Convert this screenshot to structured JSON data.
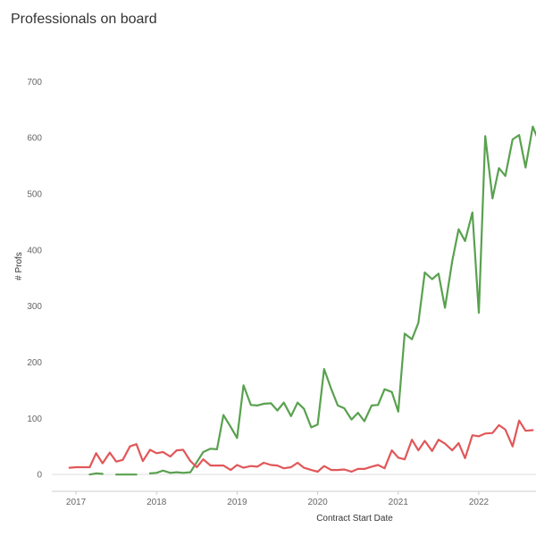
{
  "chart_data": {
    "type": "line",
    "title": "Professionals on board",
    "xlabel": "Contract Start Date",
    "ylabel": "# Profs",
    "ylim": [
      -30,
      750
    ],
    "xlim": [
      2016.7,
      2022.71
    ],
    "y_ticks": [
      0,
      100,
      200,
      300,
      400,
      500,
      600,
      700
    ],
    "x_ticks": [
      "2017",
      "2018",
      "2019",
      "2020",
      "2021",
      "2022"
    ],
    "grid": "horizontal zero line only",
    "legend": "none",
    "colors": {
      "green": "#59a14f",
      "red": "#e15759"
    },
    "series": [
      {
        "color": "#59a14f",
        "segments": [
          [
            [
              2017.17,
              0
            ],
            [
              2017.25,
              2
            ],
            [
              2017.33,
              1
            ]
          ],
          [
            [
              2017.5,
              0
            ],
            [
              2017.58,
              0
            ],
            [
              2017.67,
              0
            ],
            [
              2017.75,
              0
            ]
          ],
          [
            [
              2017.92,
              2
            ],
            [
              2018.0,
              3
            ],
            [
              2018.08,
              7
            ],
            [
              2018.17,
              3
            ],
            [
              2018.25,
              4
            ],
            [
              2018.33,
              3
            ],
            [
              2018.42,
              4
            ],
            [
              2018.5,
              22
            ],
            [
              2018.58,
              40
            ],
            [
              2018.67,
              46
            ],
            [
              2018.75,
              45
            ],
            [
              2018.83,
              106
            ],
            [
              2018.92,
              85
            ],
            [
              2019.0,
              65
            ],
            [
              2019.08,
              159
            ],
            [
              2019.17,
              124
            ],
            [
              2019.25,
              123
            ],
            [
              2019.33,
              126
            ],
            [
              2019.42,
              127
            ],
            [
              2019.5,
              114
            ],
            [
              2019.58,
              128
            ],
            [
              2019.67,
              104
            ],
            [
              2019.75,
              128
            ],
            [
              2019.83,
              117
            ],
            [
              2019.92,
              84
            ],
            [
              2020.0,
              89
            ],
            [
              2020.08,
              188
            ],
            [
              2020.17,
              152
            ],
            [
              2020.25,
              123
            ],
            [
              2020.33,
              118
            ],
            [
              2020.42,
              98
            ],
            [
              2020.5,
              110
            ],
            [
              2020.58,
              95
            ],
            [
              2020.67,
              123
            ],
            [
              2020.75,
              124
            ],
            [
              2020.83,
              152
            ],
            [
              2020.92,
              147
            ],
            [
              2021.0,
              112
            ],
            [
              2021.08,
              251
            ],
            [
              2021.17,
              241
            ],
            [
              2021.25,
              270
            ],
            [
              2021.33,
              360
            ],
            [
              2021.42,
              348
            ],
            [
              2021.5,
              358
            ],
            [
              2021.58,
              297
            ],
            [
              2021.67,
              380
            ],
            [
              2021.75,
              437
            ],
            [
              2021.83,
              416
            ],
            [
              2021.92,
              467
            ],
            [
              2022.0,
              288
            ],
            [
              2022.08,
              603
            ],
            [
              2022.17,
              492
            ],
            [
              2022.25,
              546
            ],
            [
              2022.33,
              532
            ],
            [
              2022.42,
              597
            ],
            [
              2022.5,
              605
            ],
            [
              2022.58,
              547
            ],
            [
              2022.67,
              620
            ],
            [
              2022.75,
              592
            ]
          ]
        ]
      },
      {
        "color": "#e15759",
        "segments": [
          [
            [
              2016.92,
              12
            ],
            [
              2017.0,
              13
            ],
            [
              2017.08,
              13
            ],
            [
              2017.17,
              13
            ],
            [
              2017.25,
              38
            ],
            [
              2017.33,
              20
            ],
            [
              2017.42,
              39
            ],
            [
              2017.5,
              23
            ],
            [
              2017.58,
              26
            ],
            [
              2017.67,
              50
            ],
            [
              2017.75,
              54
            ],
            [
              2017.83,
              24
            ],
            [
              2017.92,
              44
            ],
            [
              2018.0,
              38
            ],
            [
              2018.08,
              40
            ],
            [
              2018.17,
              32
            ],
            [
              2018.25,
              43
            ],
            [
              2018.33,
              44
            ],
            [
              2018.42,
              24
            ],
            [
              2018.5,
              13
            ],
            [
              2018.58,
              27
            ],
            [
              2018.67,
              16
            ],
            [
              2018.75,
              16
            ],
            [
              2018.83,
              16
            ],
            [
              2018.92,
              8
            ],
            [
              2019.0,
              17
            ],
            [
              2019.08,
              12
            ],
            [
              2019.17,
              15
            ],
            [
              2019.25,
              14
            ],
            [
              2019.33,
              21
            ],
            [
              2019.42,
              17
            ],
            [
              2019.5,
              16
            ],
            [
              2019.58,
              11
            ],
            [
              2019.67,
              13
            ],
            [
              2019.75,
              21
            ],
            [
              2019.83,
              12
            ],
            [
              2019.92,
              8
            ],
            [
              2020.0,
              5
            ],
            [
              2020.08,
              15
            ],
            [
              2020.17,
              8
            ],
            [
              2020.25,
              8
            ],
            [
              2020.33,
              9
            ],
            [
              2020.42,
              5
            ],
            [
              2020.5,
              10
            ],
            [
              2020.58,
              10
            ],
            [
              2020.67,
              14
            ],
            [
              2020.75,
              17
            ],
            [
              2020.83,
              11
            ],
            [
              2020.92,
              43
            ],
            [
              2021.0,
              30
            ],
            [
              2021.08,
              27
            ],
            [
              2021.17,
              62
            ],
            [
              2021.25,
              43
            ],
            [
              2021.33,
              60
            ],
            [
              2021.42,
              42
            ],
            [
              2021.5,
              62
            ],
            [
              2021.58,
              55
            ],
            [
              2021.67,
              43
            ],
            [
              2021.75,
              56
            ],
            [
              2021.83,
              29
            ],
            [
              2021.92,
              70
            ],
            [
              2022.0,
              68
            ],
            [
              2022.08,
              73
            ],
            [
              2022.17,
              74
            ],
            [
              2022.25,
              88
            ],
            [
              2022.33,
              80
            ],
            [
              2022.42,
              50
            ],
            [
              2022.5,
              96
            ],
            [
              2022.58,
              78
            ],
            [
              2022.67,
              79
            ]
          ]
        ]
      }
    ]
  }
}
